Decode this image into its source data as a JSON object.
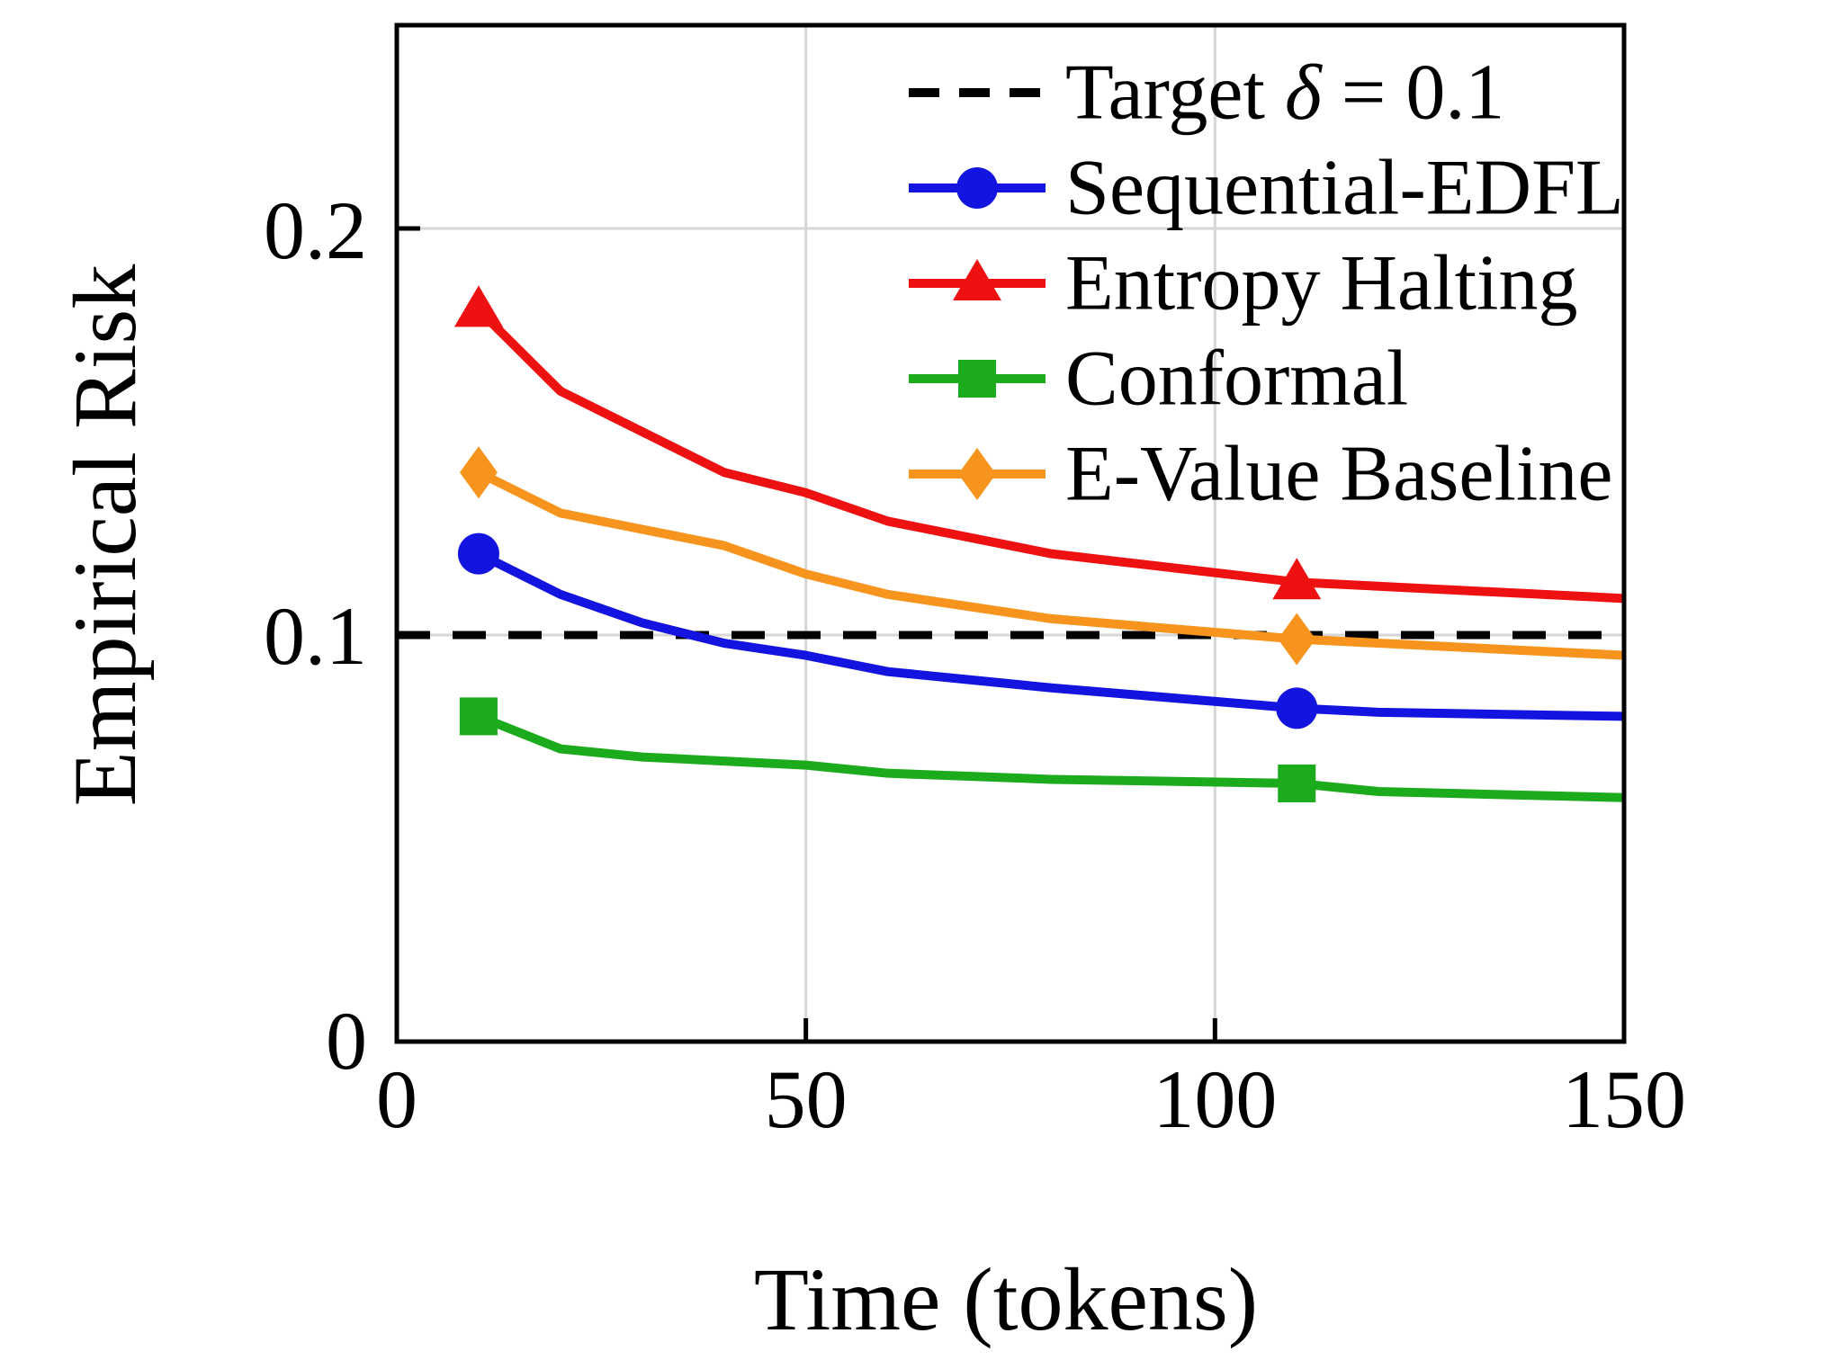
{
  "figure": {
    "background": "#ffffff",
    "grid_color": "#d6d6d6",
    "frame_color": "#000000"
  },
  "chart_data": {
    "type": "line",
    "title": "",
    "xlabel": "Time (tokens)",
    "ylabel": "Empirical Risk",
    "xlim": [
      0,
      150
    ],
    "ylim": [
      0,
      0.25
    ],
    "xticks": [
      0,
      50,
      100,
      150
    ],
    "yticks": [
      0,
      0.1,
      0.2
    ],
    "xtick_labels": [
      "0",
      "50",
      "100",
      "150"
    ],
    "ytick_labels": [
      "0",
      "0.1",
      "0.2"
    ],
    "grid": true,
    "legend_position": "upper right",
    "target_line": {
      "label": "Target δ = 0.1",
      "value": 0.1,
      "color": "#000000",
      "style": "dashed"
    },
    "marker_x": [
      10,
      110
    ],
    "series": [
      {
        "name": "Sequential-EDFL",
        "color": "#1414e0",
        "marker": "circle",
        "x": [
          10,
          20,
          30,
          40,
          50,
          60,
          80,
          110,
          120,
          150
        ],
        "y": [
          0.12,
          0.11,
          0.103,
          0.098,
          0.095,
          0.091,
          0.087,
          0.082,
          0.081,
          0.08
        ]
      },
      {
        "name": "Entropy Halting",
        "color": "#ee1111",
        "marker": "triangle",
        "x": [
          10,
          20,
          30,
          40,
          50,
          60,
          80,
          110,
          150
        ],
        "y": [
          0.18,
          0.16,
          0.15,
          0.14,
          0.135,
          0.128,
          0.12,
          0.113,
          0.109
        ]
      },
      {
        "name": "Conformal",
        "color": "#1cab1c",
        "marker": "square",
        "x": [
          10,
          20,
          30,
          40,
          50,
          60,
          80,
          110,
          120,
          150
        ],
        "y": [
          0.08,
          0.072,
          0.07,
          0.069,
          0.068,
          0.066,
          0.0645,
          0.0635,
          0.0615,
          0.06
        ]
      },
      {
        "name": "E-Value Baseline",
        "color": "#f7941e",
        "marker": "diamond",
        "x": [
          10,
          20,
          30,
          40,
          50,
          60,
          80,
          110,
          150
        ],
        "y": [
          0.14,
          0.13,
          0.126,
          0.122,
          0.115,
          0.11,
          0.104,
          0.099,
          0.095
        ]
      }
    ],
    "legend": {
      "entries": [
        {
          "label": "Target δ = 0.1",
          "color": "#000000",
          "marker": "none",
          "dash": true
        },
        {
          "label": "Sequential-EDFL",
          "color": "#1414e0",
          "marker": "circle",
          "dash": false
        },
        {
          "label": "Entropy Halting",
          "color": "#ee1111",
          "marker": "triangle",
          "dash": false
        },
        {
          "label": "Conformal",
          "color": "#1cab1c",
          "marker": "square",
          "dash": false
        },
        {
          "label": "E-Value Baseline",
          "color": "#f7941e",
          "marker": "diamond",
          "dash": false
        }
      ]
    }
  }
}
